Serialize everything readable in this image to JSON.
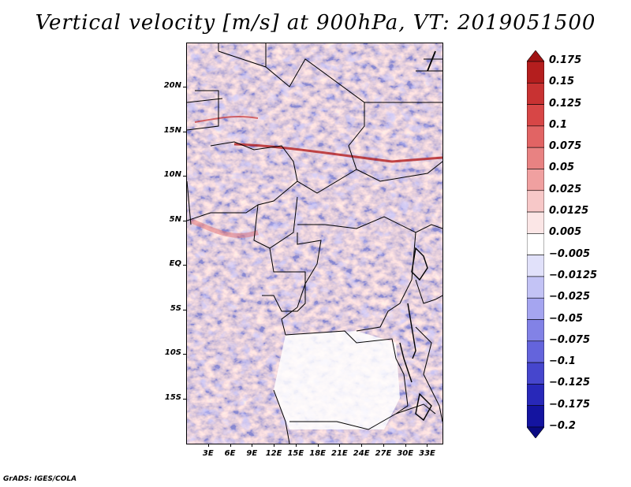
{
  "title": "Vertical velocity [m/s] at 900hPa, VT: 2019051500",
  "footer": "GrADS: IGES/COLA",
  "map": {
    "projection": "lat-lon",
    "lon_range": [
      0,
      35
    ],
    "lat_range": [
      -20,
      25
    ],
    "lat_ticks": [
      {
        "value": 20,
        "label": "20N"
      },
      {
        "value": 15,
        "label": "15N"
      },
      {
        "value": 10,
        "label": "10N"
      },
      {
        "value": 5,
        "label": "5N"
      },
      {
        "value": 0,
        "label": "EQ"
      },
      {
        "value": -5,
        "label": "5S"
      },
      {
        "value": -10,
        "label": "10S"
      },
      {
        "value": -15,
        "label": "15S"
      }
    ],
    "lon_ticks": [
      {
        "value": 3,
        "label": "3E"
      },
      {
        "value": 6,
        "label": "6E"
      },
      {
        "value": 9,
        "label": "9E"
      },
      {
        "value": 12,
        "label": "12E"
      },
      {
        "value": 15,
        "label": "15E"
      },
      {
        "value": 18,
        "label": "18E"
      },
      {
        "value": 21,
        "label": "21E"
      },
      {
        "value": 24,
        "label": "24E"
      },
      {
        "value": 27,
        "label": "27E"
      },
      {
        "value": 30,
        "label": "30E"
      },
      {
        "value": 33,
        "label": "33E"
      }
    ]
  },
  "colorbar": {
    "labels": [
      "0.175",
      "0.15",
      "0.125",
      "0.1",
      "0.075",
      "0.05",
      "0.025",
      "0.0125",
      "0.005",
      "−0.005",
      "−0.0125",
      "−0.025",
      "−0.05",
      "−0.075",
      "−0.1",
      "−0.125",
      "−0.175",
      "−0.2"
    ],
    "colors": [
      "#a01414",
      "#b41e1e",
      "#c83232",
      "#d74646",
      "#e16464",
      "#e88282",
      "#f0a0a0",
      "#f7c8c8",
      "#fbe6e6",
      "#ffffff",
      "#e1e1fa",
      "#c3c3f5",
      "#a5a5f0",
      "#8282e6",
      "#6464dc",
      "#4646cd",
      "#2828b9",
      "#1414a0",
      "#0a0a82"
    ]
  }
}
